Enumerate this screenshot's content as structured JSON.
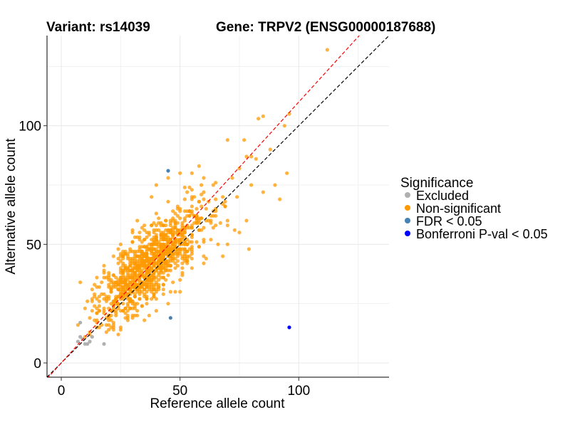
{
  "chart_data": {
    "type": "scatter",
    "title_left": "Variant: rs14039",
    "title_right": "Gene: TRPV2 (ENSG00000187688)",
    "xlabel": "Reference allele count",
    "ylabel": "Alternative allele count",
    "xlim": [
      -6,
      138
    ],
    "ylim": [
      -6,
      138
    ],
    "xticks": [
      0,
      50,
      100
    ],
    "yticks": [
      0,
      50,
      100
    ],
    "grid": true,
    "legend": {
      "title": "Significance",
      "position": "right",
      "entries": [
        {
          "label": "Excluded",
          "color": "#b0b0b0"
        },
        {
          "label": "Non-significant",
          "color": "#ff9900"
        },
        {
          "label": "FDR < 0.05",
          "color": "#4682b4"
        },
        {
          "label": "Bonferroni P-val < 0.05",
          "color": "#0000ff"
        }
      ]
    },
    "reference_lines": [
      {
        "name": "identity",
        "slope": 1,
        "intercept": 0,
        "color": "#000000",
        "style": "dashed"
      },
      {
        "name": "fit",
        "slope": 1.1,
        "intercept": 0,
        "color": "#ff0000",
        "style": "dashed"
      }
    ],
    "series": [
      {
        "name": "Excluded",
        "color": "#b0b0b0",
        "points": [
          [
            8,
            17
          ],
          [
            8,
            11
          ],
          [
            10,
            8
          ],
          [
            11,
            8
          ],
          [
            12,
            9
          ],
          [
            13,
            11
          ],
          [
            18,
            8
          ],
          [
            9,
            10
          ],
          [
            7,
            9
          ]
        ]
      },
      {
        "name": "Non-significant",
        "color": "#ff9900",
        "cluster": {
          "count": 1100,
          "center": [
            38,
            42
          ],
          "sd_x": 11,
          "sd_y": 12,
          "correlation": 0.8
        },
        "points": [
          [
            112,
            132
          ],
          [
            96,
            105
          ],
          [
            94,
            100
          ],
          [
            85,
            104
          ],
          [
            83,
            103
          ],
          [
            78,
            87
          ],
          [
            77,
            94
          ],
          [
            88,
            90
          ],
          [
            95,
            80
          ],
          [
            92,
            69
          ],
          [
            70,
            94
          ],
          [
            82,
            86
          ],
          [
            75,
            82
          ],
          [
            80,
            75
          ],
          [
            72,
            78
          ],
          [
            65,
            76
          ],
          [
            68,
            70
          ],
          [
            60,
            78
          ],
          [
            58,
            83
          ],
          [
            55,
            80
          ],
          [
            78,
            60
          ],
          [
            79,
            48
          ],
          [
            75,
            55
          ],
          [
            70,
            58
          ],
          [
            85,
            72
          ],
          [
            90,
            75
          ],
          [
            25,
            15
          ],
          [
            20,
            20
          ],
          [
            15,
            15
          ],
          [
            18,
            22
          ],
          [
            22,
            26
          ],
          [
            30,
            20
          ],
          [
            35,
            18
          ],
          [
            40,
            22
          ],
          [
            12,
            12
          ],
          [
            14,
            18
          ],
          [
            22,
            33
          ],
          [
            45,
            25
          ],
          [
            48,
            30
          ],
          [
            50,
            35
          ],
          [
            28,
            45
          ],
          [
            30,
            55
          ],
          [
            32,
            60
          ],
          [
            38,
            70
          ],
          [
            40,
            75
          ],
          [
            45,
            78
          ],
          [
            50,
            80
          ],
          [
            55,
            70
          ],
          [
            65,
            65
          ],
          [
            66,
            50
          ],
          [
            68,
            45
          ],
          [
            60,
            42
          ],
          [
            70,
            50
          ]
        ]
      },
      {
        "name": "FDR < 0.05",
        "color": "#4682b4",
        "points": [
          [
            45,
            81
          ],
          [
            46,
            19
          ]
        ]
      },
      {
        "name": "Bonferroni P-val < 0.05",
        "color": "#0000ff",
        "points": [
          [
            96,
            15
          ]
        ]
      }
    ]
  }
}
